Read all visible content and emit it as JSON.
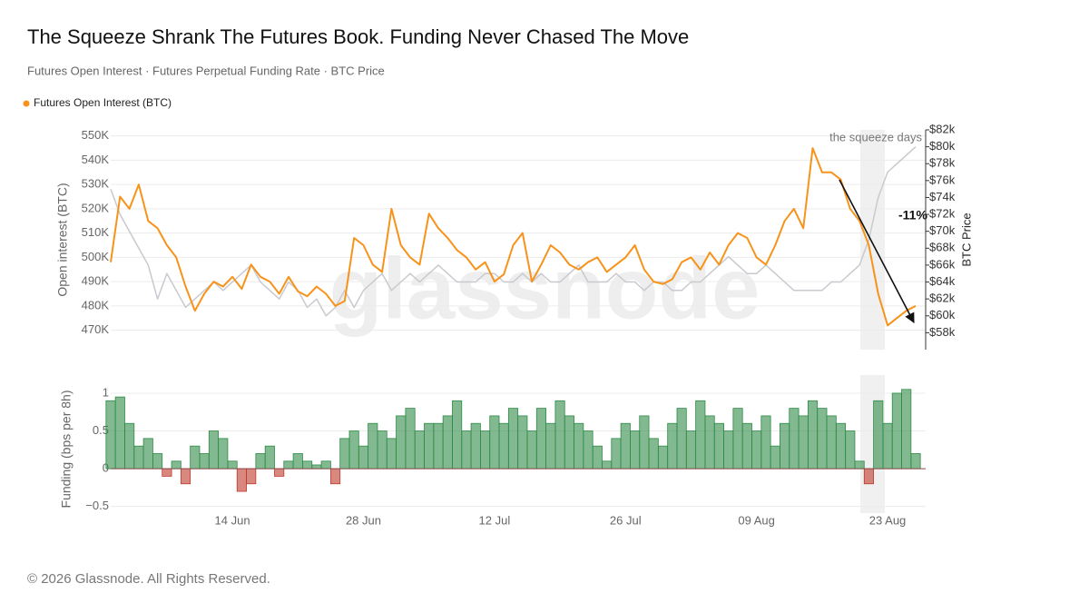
{
  "header": {
    "title": "The Squeeze Shrank The Futures Book. Funding Never Chased The Move",
    "subtitle": "Futures Open Interest · Futures Perpetual Funding Rate · BTC Price"
  },
  "watermark": "glassnode",
  "footer": "© 2026 Glassnode. All Rights Reserved.",
  "chart_data": [
    {
      "type": "line",
      "ylabel": "Open interest (BTC)",
      "x": [
        "01 Jun",
        "02 Jun",
        "03 Jun",
        "04 Jun",
        "05 Jun",
        "06 Jun",
        "07 Jun",
        "08 Jun",
        "09 Jun",
        "10 Jun",
        "11 Jun",
        "12 Jun",
        "13 Jun",
        "14 Jun",
        "15 Jun",
        "16 Jun",
        "17 Jun",
        "18 Jun",
        "19 Jun",
        "20 Jun",
        "21 Jun",
        "22 Jun",
        "23 Jun",
        "24 Jun",
        "25 Jun",
        "26 Jun",
        "27 Jun",
        "28 Jun",
        "29 Jun",
        "30 Jun",
        "01 Jul",
        "02 Jul",
        "03 Jul",
        "04 Jul",
        "05 Jul",
        "06 Jul",
        "07 Jul",
        "08 Jul",
        "09 Jul",
        "10 Jul",
        "11 Jul",
        "12 Jul",
        "13 Jul",
        "14 Jul",
        "15 Jul",
        "16 Jul",
        "17 Jul",
        "18 Jul",
        "19 Jul",
        "20 Jul",
        "21 Jul",
        "22 Jul",
        "23 Jul",
        "24 Jul",
        "25 Jul",
        "26 Jul",
        "27 Jul",
        "28 Jul",
        "29 Jul",
        "30 Jul",
        "31 Jul",
        "01 Aug",
        "02 Aug",
        "03 Aug",
        "04 Aug",
        "05 Aug",
        "06 Aug",
        "07 Aug",
        "08 Aug",
        "09 Aug",
        "10 Aug",
        "11 Aug",
        "12 Aug",
        "13 Aug",
        "14 Aug",
        "15 Aug",
        "16 Aug",
        "17 Aug",
        "18 Aug",
        "19 Aug",
        "20 Aug",
        "21 Aug",
        "22 Aug",
        "23 Aug",
        "24 Aug",
        "25 Aug",
        "26 Aug"
      ],
      "series": [
        {
          "name": "Futures Open Interest (BTC)",
          "color": "#f7931a",
          "axis": "y",
          "values": [
            498000,
            525000,
            520000,
            530000,
            515000,
            512000,
            505000,
            500000,
            488000,
            478000,
            485000,
            490000,
            488000,
            492000,
            487000,
            497000,
            492000,
            490000,
            485000,
            492000,
            486000,
            484000,
            488000,
            485000,
            480000,
            482000,
            508000,
            505000,
            497000,
            494000,
            520000,
            505000,
            500000,
            497000,
            518000,
            512000,
            508000,
            503000,
            500000,
            495000,
            498000,
            490000,
            493000,
            505000,
            510000,
            490000,
            497000,
            505000,
            502000,
            497000,
            495000,
            498000,
            500000,
            494000,
            497000,
            500000,
            505000,
            495000,
            490000,
            489000,
            491000,
            498000,
            500000,
            495000,
            502000,
            497000,
            505000,
            510000,
            508000,
            500000,
            497000,
            505000,
            515000,
            520000,
            512000,
            545000,
            535000,
            535000,
            532000,
            520000,
            515000,
            505000,
            485000,
            472000,
            475000,
            478000,
            480000
          ]
        },
        {
          "name": "BTC Price",
          "color": "#c9c9cf",
          "axis": "y2",
          "values": [
            75000,
            72000,
            70000,
            68000,
            66000,
            62000,
            65000,
            63000,
            61000,
            62000,
            63000,
            64000,
            63000,
            64000,
            65000,
            66000,
            64000,
            63000,
            62000,
            64000,
            63000,
            61000,
            62000,
            60000,
            61000,
            63000,
            61000,
            63000,
            64000,
            65000,
            63000,
            64000,
            65000,
            64000,
            65000,
            66000,
            65000,
            64000,
            64000,
            64000,
            65000,
            65000,
            64000,
            64000,
            65000,
            64000,
            65000,
            64000,
            64000,
            65000,
            66000,
            64000,
            64000,
            64000,
            65000,
            64000,
            64000,
            63000,
            64000,
            64000,
            63000,
            63000,
            64000,
            64000,
            65000,
            66000,
            67000,
            66000,
            65000,
            65000,
            66000,
            65000,
            64000,
            63000,
            63000,
            63000,
            63000,
            64000,
            64000,
            65000,
            66000,
            69000,
            74000,
            77000,
            78000,
            79000,
            80000
          ]
        }
      ],
      "ylim": [
        462000,
        552500
      ],
      "yticks": [
        {
          "value": 470000,
          "label": "470K"
        },
        {
          "value": 480000,
          "label": "480K"
        },
        {
          "value": 490000,
          "label": "490K"
        },
        {
          "value": 500000,
          "label": "500K"
        },
        {
          "value": 510000,
          "label": "510K"
        },
        {
          "value": 520000,
          "label": "520K"
        },
        {
          "value": 530000,
          "label": "530K"
        },
        {
          "value": 540000,
          "label": "540K"
        },
        {
          "value": 550000,
          "label": "550K"
        }
      ],
      "y2lim": [
        56000,
        82000
      ],
      "y2ticks": [
        {
          "value": 58000,
          "label": "$58k"
        },
        {
          "value": 60000,
          "label": "$60k"
        },
        {
          "value": 62000,
          "label": "$62k"
        },
        {
          "value": 64000,
          "label": "$64k"
        },
        {
          "value": 66000,
          "label": "$66k"
        },
        {
          "value": 68000,
          "label": "$68k"
        },
        {
          "value": 70000,
          "label": "$70k"
        },
        {
          "value": 72000,
          "label": "$72k"
        },
        {
          "value": 74000,
          "label": "$74k"
        },
        {
          "value": 76000,
          "label": "$76k"
        },
        {
          "value": 78000,
          "label": "$78k"
        },
        {
          "value": 80000,
          "label": "$80k"
        },
        {
          "value": 82000,
          "label": "$82k"
        }
      ],
      "grid": true,
      "annotations": [
        "the squeeze days",
        "-11%"
      ]
    },
    {
      "type": "area",
      "ylabel": "Funding (bps per 8h)",
      "color": "#2e8b46",
      "negative_color": "#c0392b",
      "x": [
        "01 Jun",
        "02 Jun",
        "03 Jun",
        "04 Jun",
        "05 Jun",
        "06 Jun",
        "07 Jun",
        "08 Jun",
        "09 Jun",
        "10 Jun",
        "11 Jun",
        "12 Jun",
        "13 Jun",
        "14 Jun",
        "15 Jun",
        "16 Jun",
        "17 Jun",
        "18 Jun",
        "19 Jun",
        "20 Jun",
        "21 Jun",
        "22 Jun",
        "23 Jun",
        "24 Jun",
        "25 Jun",
        "26 Jun",
        "27 Jun",
        "28 Jun",
        "29 Jun",
        "30 Jun",
        "01 Jul",
        "02 Jul",
        "03 Jul",
        "04 Jul",
        "05 Jul",
        "06 Jul",
        "07 Jul",
        "08 Jul",
        "09 Jul",
        "10 Jul",
        "11 Jul",
        "12 Jul",
        "13 Jul",
        "14 Jul",
        "15 Jul",
        "16 Jul",
        "17 Jul",
        "18 Jul",
        "19 Jul",
        "20 Jul",
        "21 Jul",
        "22 Jul",
        "23 Jul",
        "24 Jul",
        "25 Jul",
        "26 Jul",
        "27 Jul",
        "28 Jul",
        "29 Jul",
        "30 Jul",
        "31 Jul",
        "01 Aug",
        "02 Aug",
        "03 Aug",
        "04 Aug",
        "05 Aug",
        "06 Aug",
        "07 Aug",
        "08 Aug",
        "09 Aug",
        "10 Aug",
        "11 Aug",
        "12 Aug",
        "13 Aug",
        "14 Aug",
        "15 Aug",
        "16 Aug",
        "17 Aug",
        "18 Aug",
        "19 Aug",
        "20 Aug",
        "21 Aug",
        "22 Aug",
        "23 Aug",
        "24 Aug",
        "25 Aug",
        "26 Aug"
      ],
      "values": [
        0.9,
        0.95,
        0.6,
        0.3,
        0.4,
        0.2,
        -0.1,
        0.1,
        -0.2,
        0.3,
        0.2,
        0.5,
        0.4,
        0.1,
        -0.3,
        -0.2,
        0.2,
        0.3,
        -0.1,
        0.1,
        0.2,
        0.1,
        0.05,
        0.1,
        -0.2,
        0.4,
        0.5,
        0.3,
        0.6,
        0.5,
        0.4,
        0.7,
        0.8,
        0.5,
        0.6,
        0.6,
        0.7,
        0.9,
        0.5,
        0.6,
        0.5,
        0.7,
        0.6,
        0.8,
        0.7,
        0.5,
        0.8,
        0.6,
        0.9,
        0.7,
        0.6,
        0.5,
        0.3,
        0.1,
        0.4,
        0.6,
        0.5,
        0.7,
        0.4,
        0.3,
        0.6,
        0.8,
        0.5,
        0.9,
        0.7,
        0.6,
        0.5,
        0.8,
        0.6,
        0.5,
        0.7,
        0.3,
        0.6,
        0.8,
        0.7,
        0.9,
        0.8,
        0.7,
        0.6,
        0.5,
        0.1,
        -0.2,
        0.9,
        0.6,
        1.0,
        1.05,
        0.2
      ],
      "ylim": [
        -0.6,
        1.12
      ],
      "yticks": [
        {
          "value": -0.5,
          "label": "−0.5"
        },
        0,
        0.5,
        1
      ],
      "xticks": [
        "14 Jun",
        "28 Jun",
        "12 Jul",
        "26 Jul",
        "09 Aug",
        "23 Aug"
      ],
      "grid": true
    }
  ]
}
